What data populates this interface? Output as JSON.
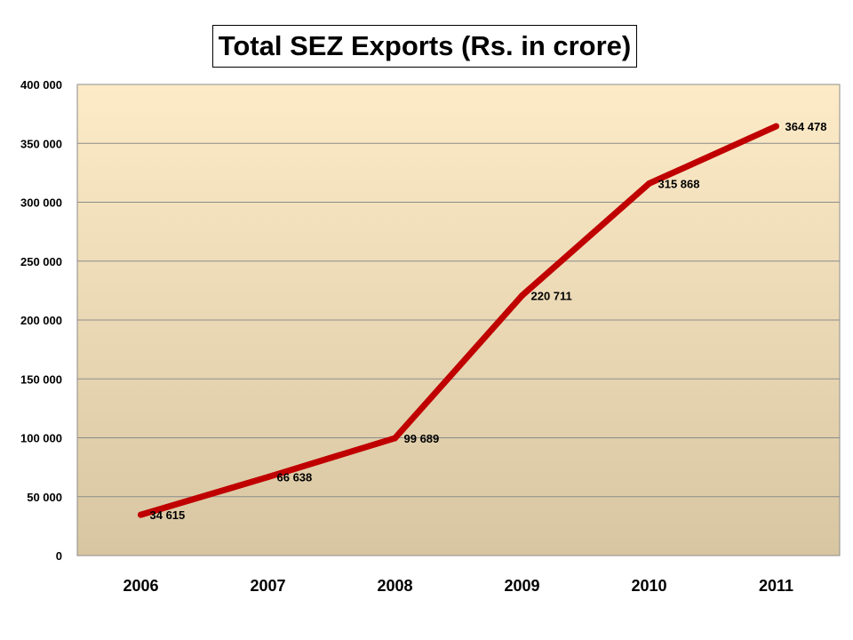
{
  "chart_data": {
    "type": "line",
    "title": "Total SEZ Exports (Rs. in crore)",
    "xlabel": "",
    "ylabel": "",
    "categories": [
      "2006",
      "2007",
      "2008",
      "2009",
      "2010",
      "2011"
    ],
    "series": [
      {
        "values": [
          34615,
          66638,
          99689,
          220711,
          315868,
          364478
        ],
        "labels": [
          "34 615",
          "66 638",
          "99 689",
          "220 711",
          "315 868",
          "364 478"
        ],
        "color": "#c00000"
      }
    ],
    "ylim": [
      0,
      400000
    ],
    "yticks": [
      {
        "value": 0,
        "label": "0"
      },
      {
        "value": 50000,
        "label": "50 000"
      },
      {
        "value": 100000,
        "label": "100 000"
      },
      {
        "value": 150000,
        "label": "150 000"
      },
      {
        "value": 200000,
        "label": "200 000"
      },
      {
        "value": 250000,
        "label": "250 000"
      },
      {
        "value": 300000,
        "label": "300 000"
      },
      {
        "value": 350000,
        "label": "350 000"
      },
      {
        "value": 400000,
        "label": "400 000"
      }
    ],
    "grid": true,
    "legend": "none",
    "plot_background": [
      "#fdebc8",
      "#d8c6a2"
    ],
    "gridline_color": "#8c8c8c"
  }
}
